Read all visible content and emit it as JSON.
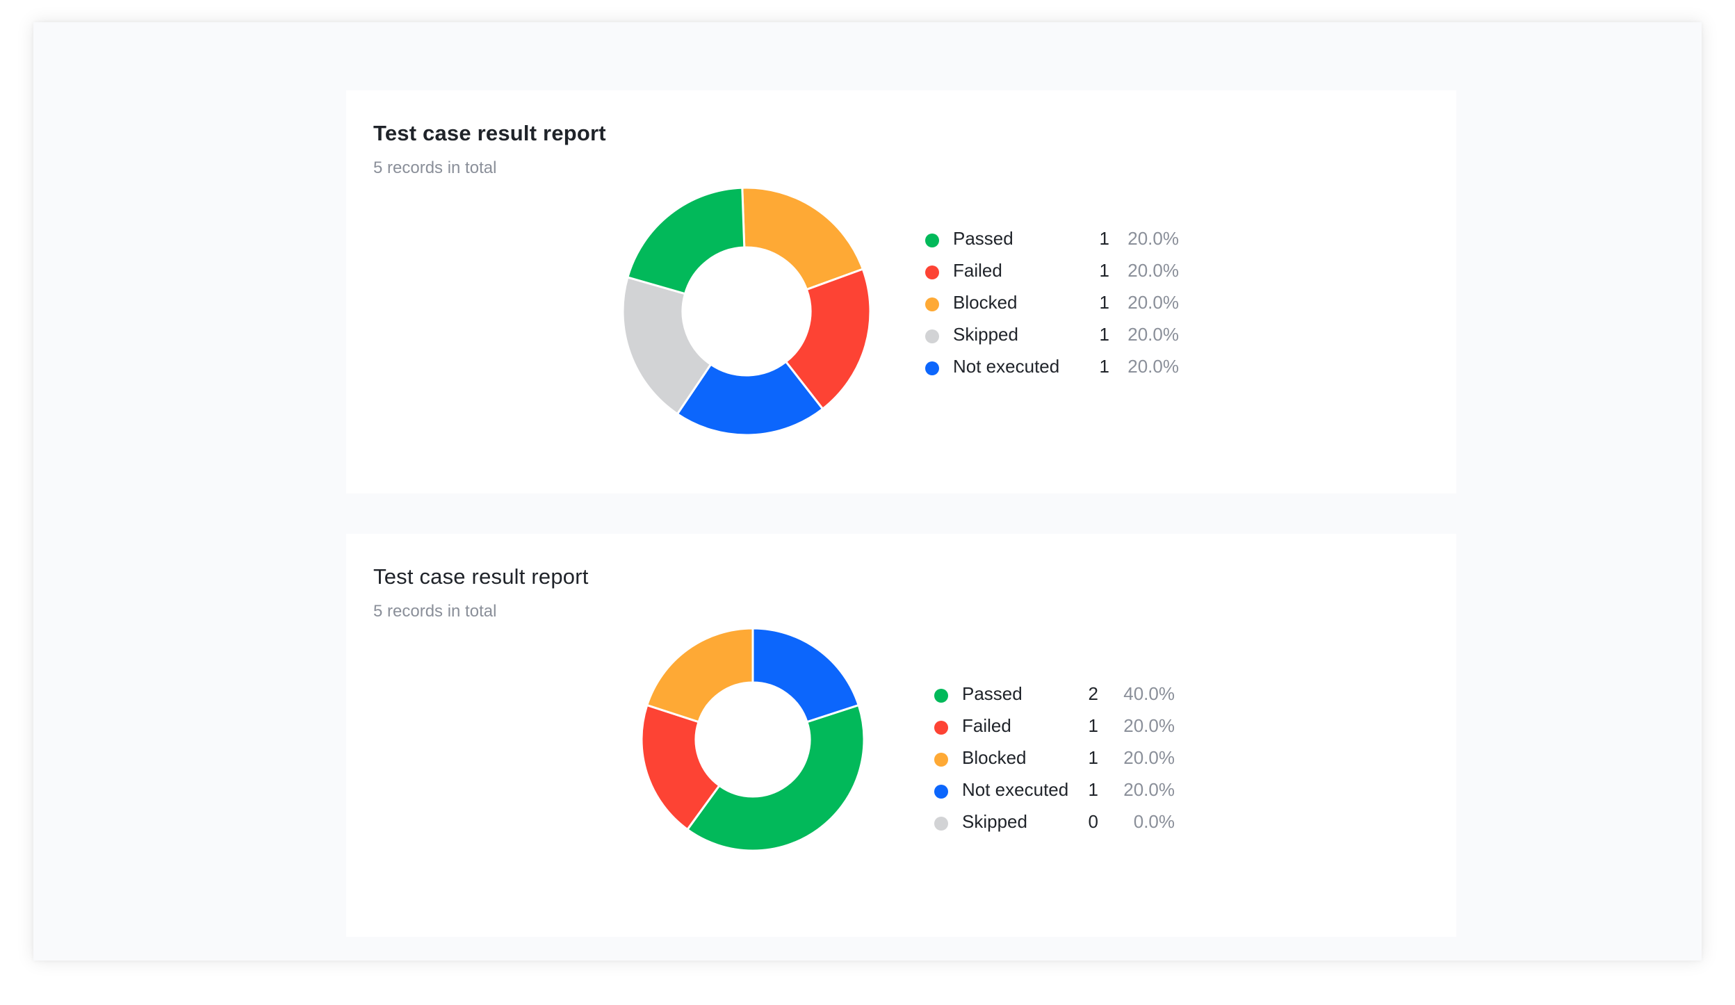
{
  "chart_data": [
    {
      "type": "pie",
      "title": "Test case result report",
      "subtitle": "5 records in total",
      "legend_position": "right",
      "categories": [
        "Passed",
        "Failed",
        "Blocked",
        "Skipped",
        "Not executed"
      ],
      "values": [
        1,
        1,
        1,
        1,
        1
      ],
      "percent_labels": [
        "20.0%",
        "20.0%",
        "20.0%",
        "20.0%",
        "20.0%"
      ],
      "colors": [
        "#02b95a",
        "#fd4334",
        "#fea935",
        "#d2d3d5",
        "#0c66fc"
      ],
      "slice_order": [
        "Blocked",
        "Failed",
        "Not executed",
        "Skipped",
        "Passed"
      ]
    },
    {
      "type": "pie",
      "title": "Test case result report",
      "subtitle": "5 records in total",
      "legend_position": "right",
      "categories": [
        "Passed",
        "Failed",
        "Blocked",
        "Not executed",
        "Skipped"
      ],
      "values": [
        2,
        1,
        1,
        1,
        0
      ],
      "percent_labels": [
        "40.0%",
        "20.0%",
        "20.0%",
        "20.0%",
        "0.0%"
      ],
      "colors": [
        "#02b95a",
        "#fd4334",
        "#fea935",
        "#0c66fc",
        "#d2d3d5"
      ],
      "slice_order": [
        "Passed",
        "Failed",
        "Blocked",
        "Not executed",
        "Skipped"
      ]
    }
  ]
}
